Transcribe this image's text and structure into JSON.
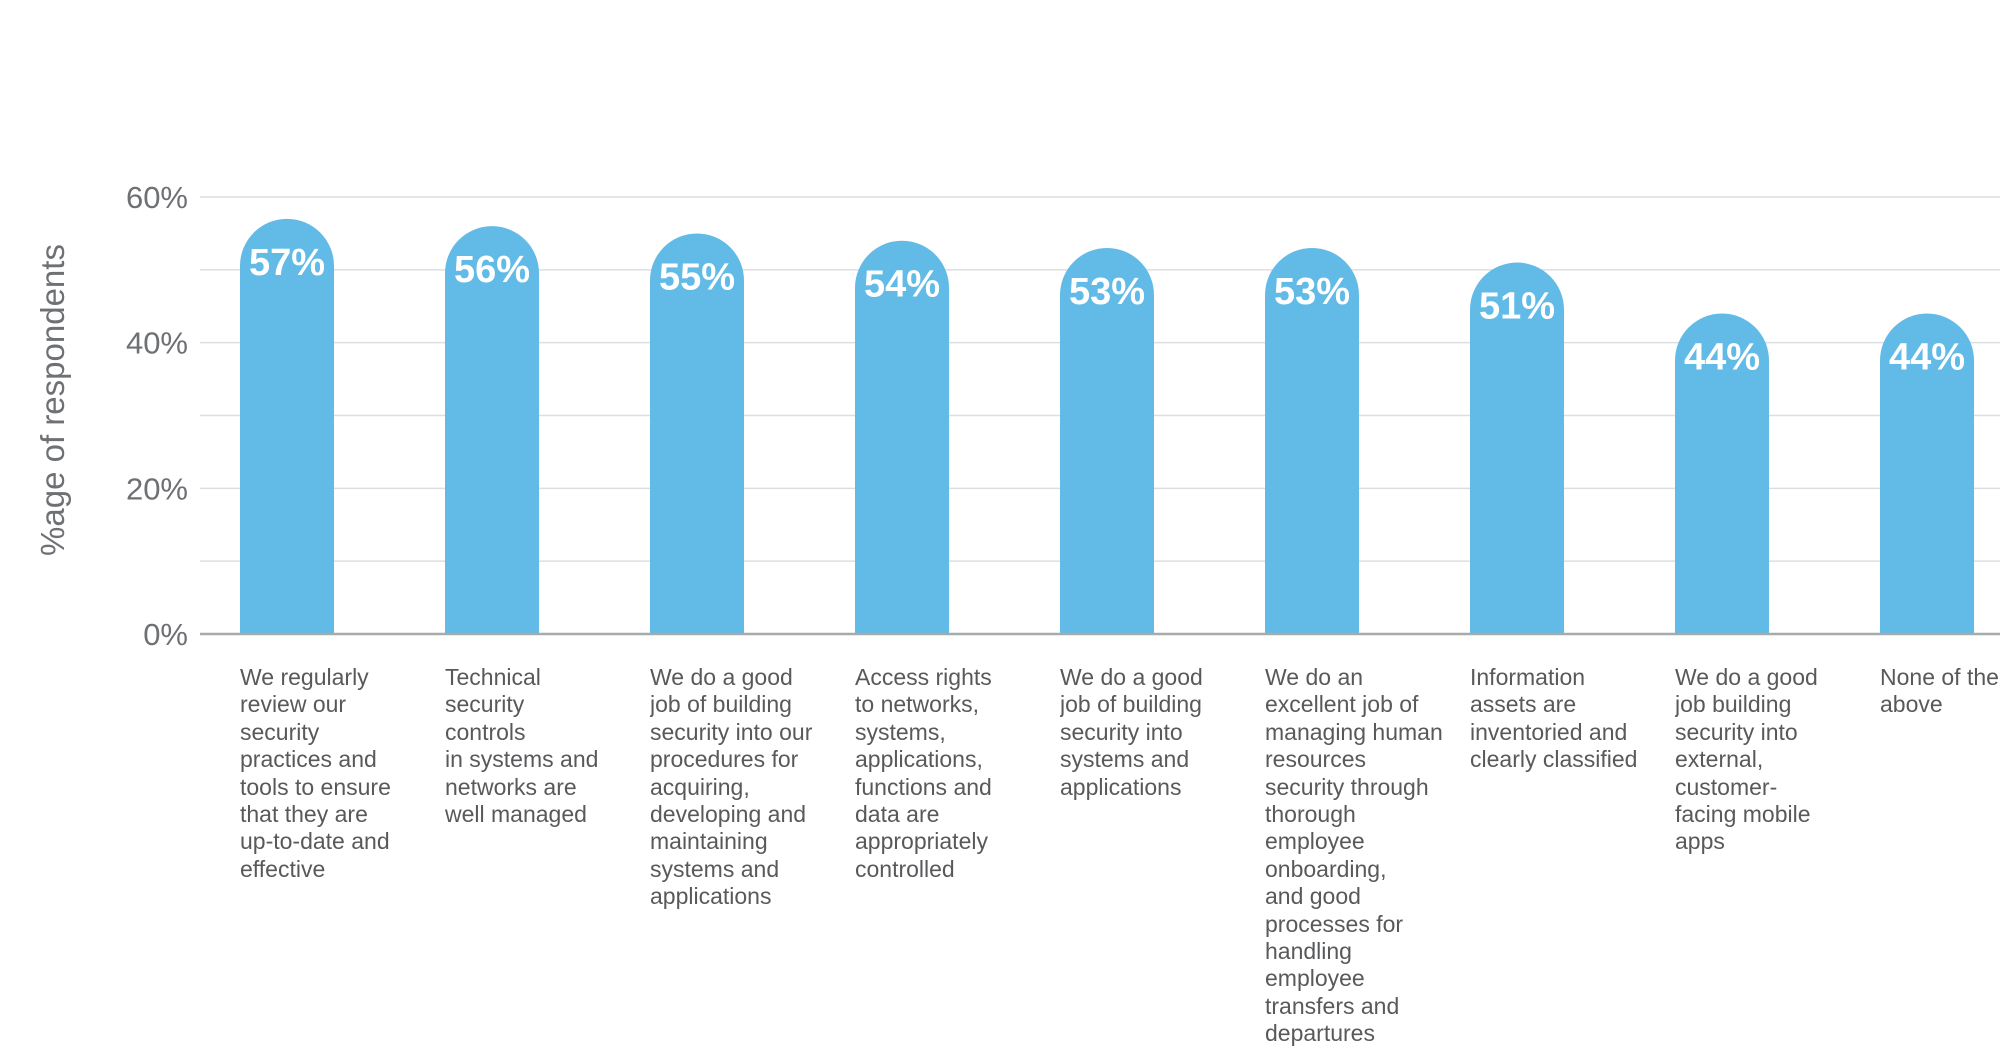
{
  "chart_data": {
    "type": "bar",
    "ylabel": "%age of respondents",
    "ylim": [
      0,
      60
    ],
    "yticks": [
      "0%",
      "20%",
      "40%",
      "60%"
    ],
    "grid": true,
    "categories": [
      "We regularly\nreview our\nsecurity\npractices and\ntools to ensure\nthat they are\nup-to-date and\neffective",
      "Technical\nsecurity\ncontrols\nin systems and\nnetworks are\nwell managed",
      "We do a good\njob of building\nsecurity into our\nprocedures for\nacquiring,\ndeveloping and\nmaintaining\nsystems and\napplications",
      "Access rights\nto networks,\nsystems,\napplications,\nfunctions and\ndata are\nappropriately\ncontrolled",
      "We do a good\njob of building\nsecurity into\nsystems and\napplications",
      "We do an\nexcellent job of\nmanaging human\nresources\nsecurity through\nthorough\nemployee\nonboarding,\nand good\nprocesses for\nhandling\nemployee\ntransfers and\ndepartures",
      "Information\nassets are\ninventoried and\nclearly classified",
      "We do a good\njob building\nsecurity into\nexternal,\ncustomer-\nfacing mobile\napps",
      "None of the\nabove"
    ],
    "values": [
      57,
      56,
      55,
      54,
      53,
      53,
      51,
      44,
      44
    ],
    "value_labels": [
      "57%",
      "56%",
      "55%",
      "54%",
      "53%",
      "53%",
      "51%",
      "44%",
      "44%"
    ],
    "bar_color": "#62bbe7",
    "grid_color": "#dcdfe2",
    "axis_color": "#a7aaad"
  }
}
